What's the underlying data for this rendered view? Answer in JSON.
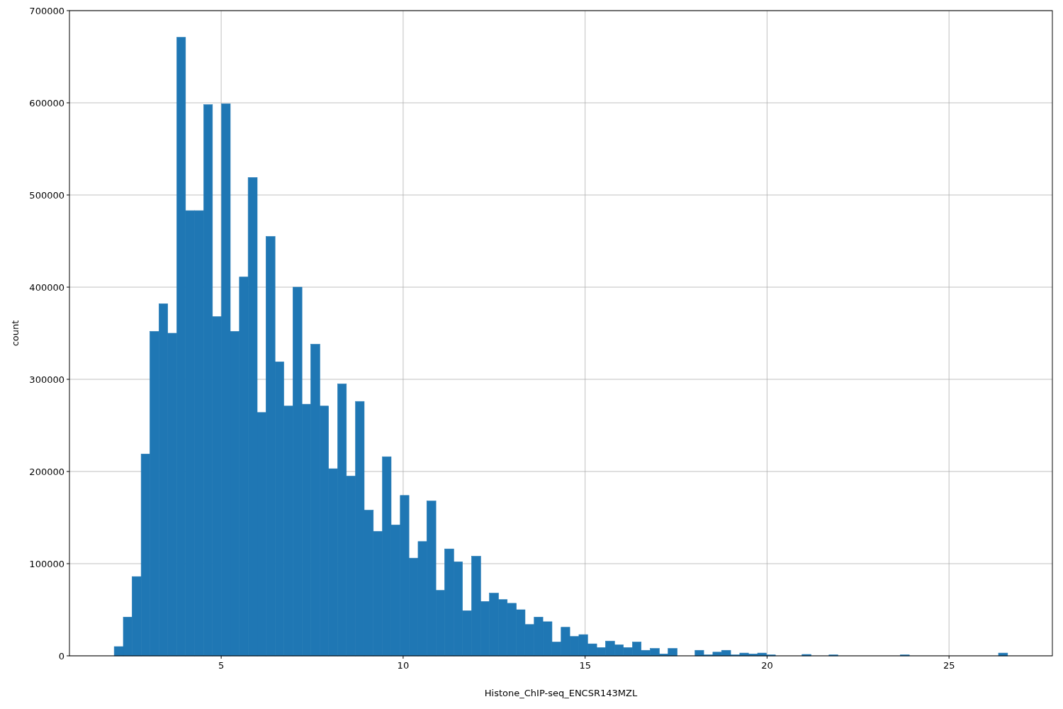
{
  "chart_data": {
    "type": "histogram",
    "xlabel": "Histone_ChIP-seq_ENCSR143MZL",
    "ylabel": "count",
    "color": "#1f77b4",
    "bins": [
      2.06,
      2.31,
      2.55,
      2.8,
      3.04,
      3.29,
      3.53,
      3.78,
      4.02,
      4.27,
      4.52,
      4.76,
      5.01,
      5.25,
      5.5,
      5.74,
      5.99,
      6.23,
      6.48,
      6.72,
      6.97,
      7.22,
      7.46,
      7.71,
      7.95,
      8.2,
      8.44,
      8.69,
      8.93,
      9.18,
      9.43,
      9.67,
      9.92,
      10.16,
      10.41,
      10.65,
      10.9,
      11.14,
      11.39,
      11.63,
      11.88,
      12.13,
      12.37,
      12.62,
      12.86,
      13.11,
      13.35,
      13.6,
      13.84,
      14.09,
      14.34,
      14.58,
      14.83,
      15.07,
      15.32,
      15.56,
      15.81,
      16.05,
      16.3,
      16.54,
      16.79,
      17.04,
      17.28,
      17.53,
      18.02,
      18.26,
      18.51,
      18.75,
      19.0,
      19.25,
      19.49,
      19.74,
      19.98,
      20.23,
      20.96,
      21.21,
      21.7,
      21.95,
      23.66,
      23.91,
      26.36,
      26.61
    ],
    "values": [
      10000,
      42000,
      86000,
      219000,
      352000,
      382000,
      350000,
      671000,
      483000,
      483000,
      598000,
      368000,
      599000,
      352000,
      411000,
      519000,
      264000,
      455000,
      319000,
      271000,
      400000,
      273000,
      338000,
      271000,
      203000,
      295000,
      195000,
      276000,
      158000,
      135000,
      216000,
      142000,
      174000,
      106000,
      124000,
      168000,
      71000,
      116000,
      102000,
      49000,
      108000,
      59000,
      68000,
      61000,
      57000,
      50000,
      34000,
      42000,
      37000,
      15000,
      31000,
      21000,
      23000,
      13000,
      9000,
      16000,
      12000,
      9000,
      15000,
      6000,
      8000,
      2000,
      8000,
      0,
      6000,
      1000,
      4000,
      6000,
      1000,
      3000,
      2000,
      3000,
      1000,
      0,
      1500,
      0,
      1000,
      0,
      1000,
      0,
      3000
    ],
    "xlim": [
      0.83,
      27.84
    ],
    "xticks": [
      5,
      10,
      15,
      20,
      25
    ],
    "ylim": [
      0,
      700000
    ],
    "yticks": [
      0,
      100000,
      200000,
      300000,
      400000,
      500000,
      600000,
      700000
    ],
    "grid": true
  }
}
